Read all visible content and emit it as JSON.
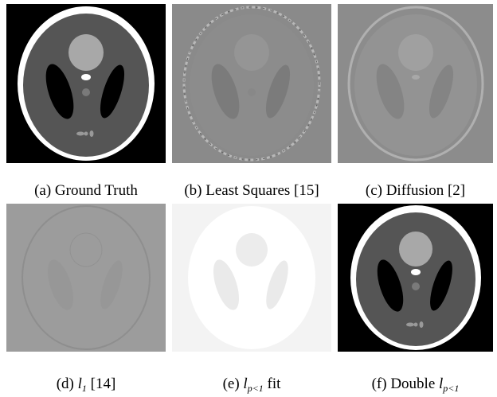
{
  "figure": {
    "panels": [
      {
        "id": "a",
        "caption": "(a) Ground Truth",
        "style": "phantom"
      },
      {
        "id": "b",
        "caption": "(b) Least Squares [15]",
        "style": "faint-gray"
      },
      {
        "id": "c",
        "caption": "(c) Diffusion [2]",
        "style": "faint-gray-soft"
      },
      {
        "id": "d",
        "caption_prefix": "(d) ",
        "caption_var": "l",
        "caption_sub": "1",
        "caption_suffix": " [14]",
        "style": "flat-gray"
      },
      {
        "id": "e",
        "caption_prefix": "(e) ",
        "caption_var": "l",
        "caption_sub": "p<1",
        "caption_suffix": " fit",
        "style": "white"
      },
      {
        "id": "f",
        "caption_prefix": "(f) Double ",
        "caption_var": "l",
        "caption_sub": "p<1",
        "caption_suffix": "",
        "style": "phantom"
      }
    ]
  }
}
